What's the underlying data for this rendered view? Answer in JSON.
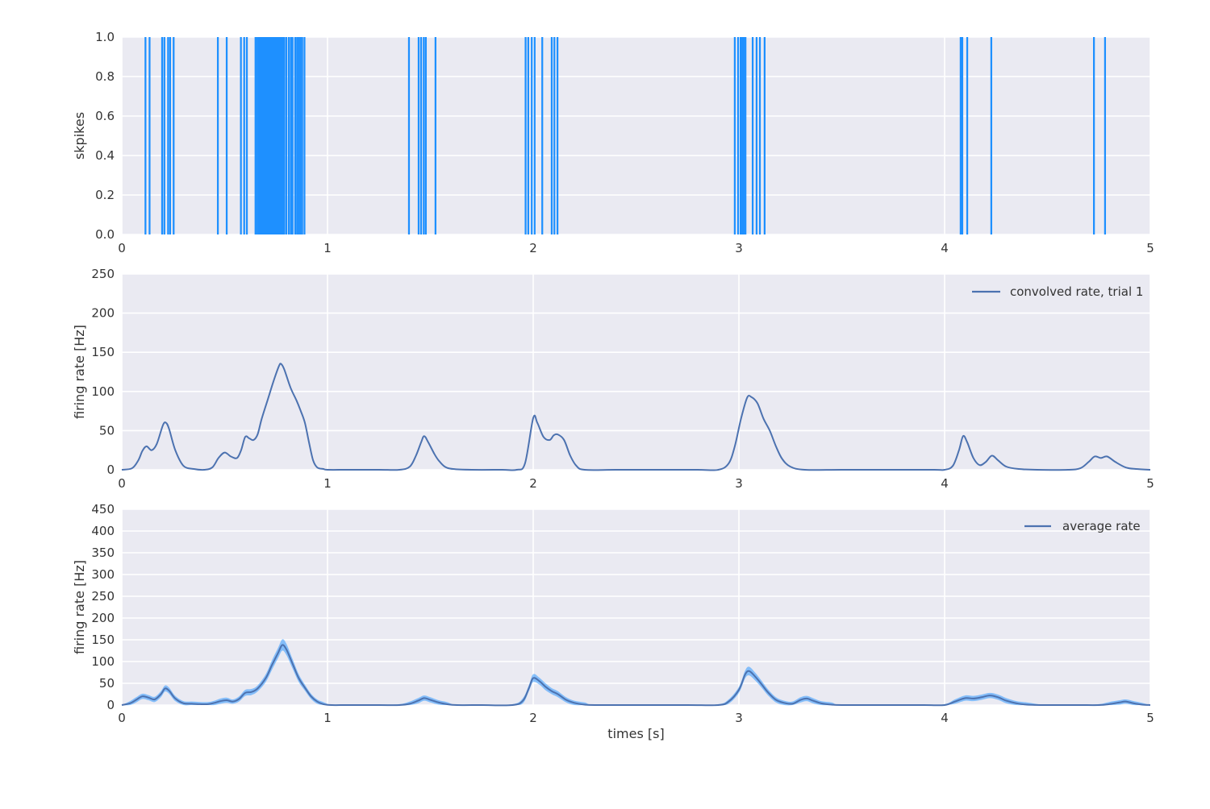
{
  "figure_colors": {
    "background": "#ffffff",
    "axes_background": "#eaeaf2",
    "grid": "#ffffff",
    "spike_color": "#1e90ff",
    "line_color": "#4c72b0",
    "band_color": "#1e90ff",
    "band_opacity": 0.5,
    "text_color": "#333333"
  },
  "chart_data": [
    {
      "type": "event",
      "name": "spike-raster",
      "ylabel": "skpikes",
      "xlim": [
        0,
        5
      ],
      "ylim": [
        0,
        1
      ],
      "xticks": [
        0,
        1,
        2,
        3,
        4,
        5
      ],
      "xtick_labels": [
        "0",
        "1",
        "2",
        "3",
        "4",
        "5"
      ],
      "yticks": [
        0,
        0.2,
        0.4,
        0.6,
        0.8,
        1.0
      ],
      "ytick_labels": [
        "0.0",
        "0.2",
        "0.4",
        "0.6",
        "0.8",
        "1.0"
      ],
      "grid": true,
      "events": [
        0.115,
        0.135,
        0.196,
        0.207,
        0.225,
        0.235,
        0.252,
        0.467,
        0.51,
        0.579,
        0.595,
        0.608,
        0.65,
        0.658,
        0.666,
        0.673,
        0.68,
        0.688,
        0.695,
        0.702,
        0.708,
        0.714,
        0.72,
        0.726,
        0.732,
        0.738,
        0.744,
        0.75,
        0.756,
        0.762,
        0.768,
        0.775,
        0.782,
        0.79,
        0.8,
        0.812,
        0.822,
        0.83,
        0.843,
        0.852,
        0.86,
        0.868,
        0.877,
        0.888,
        1.396,
        1.443,
        1.455,
        1.468,
        1.478,
        1.525,
        1.963,
        1.976,
        1.993,
        2.007,
        2.044,
        2.09,
        2.103,
        2.118,
        2.98,
        2.996,
        3.008,
        3.016,
        3.024,
        3.032,
        3.067,
        3.086,
        3.102,
        3.125,
        4.078,
        4.086,
        4.11,
        4.227,
        4.726,
        4.78
      ]
    },
    {
      "type": "line",
      "name": "convolved-rate-trial-1",
      "ylabel": "firing rate [Hz]",
      "legend": "convolved rate, trial 1",
      "legend_position": "upper right",
      "xlim": [
        0,
        5
      ],
      "ylim": [
        0,
        250
      ],
      "xticks": [
        0,
        1,
        2,
        3,
        4,
        5
      ],
      "xtick_labels": [
        "0",
        "1",
        "2",
        "3",
        "4",
        "5"
      ],
      "yticks": [
        0,
        50,
        100,
        150,
        200,
        250
      ],
      "ytick_labels": [
        "0",
        "50",
        "100",
        "150",
        "200",
        "250"
      ],
      "grid": true,
      "points": [
        [
          0,
          0
        ],
        [
          0.05,
          2
        ],
        [
          0.08,
          12
        ],
        [
          0.1,
          24
        ],
        [
          0.12,
          30
        ],
        [
          0.145,
          25
        ],
        [
          0.17,
          33
        ],
        [
          0.2,
          57
        ],
        [
          0.215,
          60
        ],
        [
          0.23,
          52
        ],
        [
          0.26,
          25
        ],
        [
          0.3,
          5
        ],
        [
          0.35,
          1
        ],
        [
          0.4,
          0
        ],
        [
          0.44,
          3
        ],
        [
          0.47,
          15
        ],
        [
          0.5,
          22
        ],
        [
          0.53,
          17
        ],
        [
          0.56,
          15
        ],
        [
          0.58,
          25
        ],
        [
          0.6,
          42
        ],
        [
          0.62,
          40
        ],
        [
          0.64,
          38
        ],
        [
          0.66,
          45
        ],
        [
          0.68,
          65
        ],
        [
          0.71,
          90
        ],
        [
          0.74,
          115
        ],
        [
          0.765,
          133
        ],
        [
          0.775,
          135
        ],
        [
          0.79,
          128
        ],
        [
          0.82,
          105
        ],
        [
          0.85,
          88
        ],
        [
          0.87,
          75
        ],
        [
          0.89,
          60
        ],
        [
          0.91,
          35
        ],
        [
          0.93,
          12
        ],
        [
          0.95,
          3
        ],
        [
          0.98,
          1
        ],
        [
          1.0,
          0
        ],
        [
          1.1,
          0
        ],
        [
          1.25,
          0
        ],
        [
          1.35,
          0
        ],
        [
          1.4,
          4
        ],
        [
          1.43,
          18
        ],
        [
          1.455,
          35
        ],
        [
          1.47,
          43
        ],
        [
          1.49,
          35
        ],
        [
          1.52,
          20
        ],
        [
          1.54,
          12
        ],
        [
          1.57,
          4
        ],
        [
          1.61,
          1
        ],
        [
          1.7,
          0
        ],
        [
          1.85,
          0
        ],
        [
          1.92,
          0
        ],
        [
          1.96,
          8
        ],
        [
          2.0,
          66
        ],
        [
          2.02,
          60
        ],
        [
          2.05,
          42
        ],
        [
          2.08,
          38
        ],
        [
          2.1,
          44
        ],
        [
          2.12,
          45
        ],
        [
          2.15,
          38
        ],
        [
          2.18,
          18
        ],
        [
          2.21,
          5
        ],
        [
          2.25,
          0
        ],
        [
          2.4,
          0
        ],
        [
          2.6,
          0
        ],
        [
          2.8,
          0
        ],
        [
          2.9,
          0
        ],
        [
          2.95,
          8
        ],
        [
          2.98,
          30
        ],
        [
          3.01,
          65
        ],
        [
          3.04,
          92
        ],
        [
          3.06,
          93
        ],
        [
          3.09,
          85
        ],
        [
          3.12,
          65
        ],
        [
          3.15,
          50
        ],
        [
          3.18,
          30
        ],
        [
          3.21,
          14
        ],
        [
          3.25,
          4
        ],
        [
          3.32,
          0
        ],
        [
          3.5,
          0
        ],
        [
          3.75,
          0
        ],
        [
          3.95,
          0
        ],
        [
          4.0,
          0
        ],
        [
          4.04,
          5
        ],
        [
          4.07,
          25
        ],
        [
          4.09,
          43
        ],
        [
          4.11,
          35
        ],
        [
          4.14,
          15
        ],
        [
          4.17,
          6
        ],
        [
          4.2,
          10
        ],
        [
          4.23,
          18
        ],
        [
          4.26,
          12
        ],
        [
          4.3,
          4
        ],
        [
          4.36,
          1
        ],
        [
          4.45,
          0
        ],
        [
          4.6,
          0
        ],
        [
          4.66,
          2
        ],
        [
          4.7,
          10
        ],
        [
          4.73,
          17
        ],
        [
          4.76,
          15
        ],
        [
          4.79,
          17
        ],
        [
          4.83,
          10
        ],
        [
          4.88,
          3
        ],
        [
          4.93,
          1
        ],
        [
          5.0,
          0
        ]
      ]
    },
    {
      "type": "band-line",
      "name": "average-rate",
      "ylabel": "firing rate [Hz]",
      "xlabel": "times [s]",
      "legend": "average rate",
      "legend_position": "upper right",
      "xlim": [
        0,
        5
      ],
      "ylim": [
        0,
        450
      ],
      "xticks": [
        0,
        1,
        2,
        3,
        4,
        5
      ],
      "xtick_labels": [
        "0",
        "1",
        "2",
        "3",
        "4",
        "5"
      ],
      "yticks": [
        0,
        50,
        100,
        150,
        200,
        250,
        300,
        350,
        400,
        450
      ],
      "ytick_labels": [
        "0",
        "50",
        "100",
        "150",
        "200",
        "250",
        "300",
        "350",
        "400",
        "450"
      ],
      "grid": true,
      "points_format": "[x, mean, lower, upper]",
      "points": [
        [
          0,
          0,
          0,
          0
        ],
        [
          0.04,
          4,
          0,
          9
        ],
        [
          0.07,
          12,
          6,
          18
        ],
        [
          0.1,
          20,
          14,
          26
        ],
        [
          0.13,
          17,
          11,
          23
        ],
        [
          0.16,
          13,
          7,
          19
        ],
        [
          0.19,
          25,
          18,
          32
        ],
        [
          0.21,
          38,
          31,
          45
        ],
        [
          0.23,
          33,
          26,
          40
        ],
        [
          0.26,
          15,
          9,
          21
        ],
        [
          0.3,
          4,
          0,
          9
        ],
        [
          0.34,
          3,
          0,
          8
        ],
        [
          0.38,
          2,
          0,
          7
        ],
        [
          0.42,
          2,
          0,
          7
        ],
        [
          0.45,
          5,
          0,
          10
        ],
        [
          0.48,
          9,
          3,
          15
        ],
        [
          0.51,
          11,
          5,
          17
        ],
        [
          0.54,
          8,
          3,
          13
        ],
        [
          0.57,
          14,
          8,
          20
        ],
        [
          0.6,
          28,
          21,
          35
        ],
        [
          0.63,
          30,
          23,
          37
        ],
        [
          0.66,
          38,
          31,
          45
        ],
        [
          0.7,
          62,
          53,
          71
        ],
        [
          0.73,
          92,
          81,
          103
        ],
        [
          0.76,
          120,
          108,
          132
        ],
        [
          0.78,
          138,
          125,
          151
        ],
        [
          0.8,
          128,
          115,
          141
        ],
        [
          0.83,
          95,
          84,
          106
        ],
        [
          0.86,
          62,
          53,
          71
        ],
        [
          0.89,
          40,
          33,
          47
        ],
        [
          0.92,
          20,
          14,
          26
        ],
        [
          0.95,
          8,
          3,
          13
        ],
        [
          0.98,
          2,
          0,
          7
        ],
        [
          1.02,
          0,
          0,
          0
        ],
        [
          1.1,
          0,
          0,
          0
        ],
        [
          1.25,
          0,
          0,
          0
        ],
        [
          1.35,
          0,
          0,
          2
        ],
        [
          1.4,
          3,
          0,
          8
        ],
        [
          1.44,
          10,
          4,
          16
        ],
        [
          1.47,
          16,
          10,
          22
        ],
        [
          1.5,
          12,
          6,
          18
        ],
        [
          1.54,
          6,
          1,
          11
        ],
        [
          1.58,
          2,
          0,
          7
        ],
        [
          1.63,
          0,
          0,
          0
        ],
        [
          1.75,
          0,
          0,
          0
        ],
        [
          1.9,
          0,
          0,
          2
        ],
        [
          1.95,
          10,
          4,
          16
        ],
        [
          1.98,
          40,
          33,
          47
        ],
        [
          2.0,
          62,
          53,
          71
        ],
        [
          2.03,
          55,
          47,
          63
        ],
        [
          2.06,
          42,
          34,
          50
        ],
        [
          2.09,
          32,
          25,
          39
        ],
        [
          2.12,
          25,
          18,
          32
        ],
        [
          2.16,
          12,
          6,
          18
        ],
        [
          2.2,
          5,
          0,
          10
        ],
        [
          2.25,
          1,
          0,
          6
        ],
        [
          2.3,
          0,
          0,
          0
        ],
        [
          2.5,
          0,
          0,
          0
        ],
        [
          2.75,
          0,
          0,
          0
        ],
        [
          2.9,
          0,
          0,
          2
        ],
        [
          2.95,
          8,
          3,
          13
        ],
        [
          3.0,
          35,
          28,
          42
        ],
        [
          3.03,
          70,
          61,
          79
        ],
        [
          3.05,
          78,
          68,
          88
        ],
        [
          3.08,
          65,
          56,
          74
        ],
        [
          3.11,
          48,
          40,
          56
        ],
        [
          3.14,
          30,
          23,
          37
        ],
        [
          3.18,
          12,
          6,
          18
        ],
        [
          3.22,
          5,
          0,
          10
        ],
        [
          3.26,
          3,
          0,
          8
        ],
        [
          3.3,
          12,
          6,
          18
        ],
        [
          3.33,
          15,
          9,
          21
        ],
        [
          3.36,
          10,
          4,
          16
        ],
        [
          3.4,
          4,
          0,
          9
        ],
        [
          3.45,
          1,
          0,
          6
        ],
        [
          3.5,
          0,
          0,
          0
        ],
        [
          3.7,
          0,
          0,
          0
        ],
        [
          3.9,
          0,
          0,
          0
        ],
        [
          4.0,
          0,
          0,
          2
        ],
        [
          4.05,
          8,
          3,
          13
        ],
        [
          4.1,
          16,
          10,
          22
        ],
        [
          4.14,
          15,
          9,
          21
        ],
        [
          4.18,
          18,
          12,
          24
        ],
        [
          4.22,
          22,
          16,
          28
        ],
        [
          4.26,
          18,
          12,
          24
        ],
        [
          4.3,
          10,
          4,
          16
        ],
        [
          4.35,
          4,
          0,
          9
        ],
        [
          4.4,
          1,
          0,
          6
        ],
        [
          4.5,
          0,
          0,
          0
        ],
        [
          4.65,
          0,
          0,
          0
        ],
        [
          4.75,
          0,
          0,
          2
        ],
        [
          4.8,
          2,
          0,
          7
        ],
        [
          4.85,
          6,
          1,
          11
        ],
        [
          4.88,
          8,
          3,
          13
        ],
        [
          4.92,
          4,
          0,
          9
        ],
        [
          4.96,
          1,
          0,
          5
        ],
        [
          5.0,
          0,
          0,
          0
        ]
      ]
    }
  ]
}
